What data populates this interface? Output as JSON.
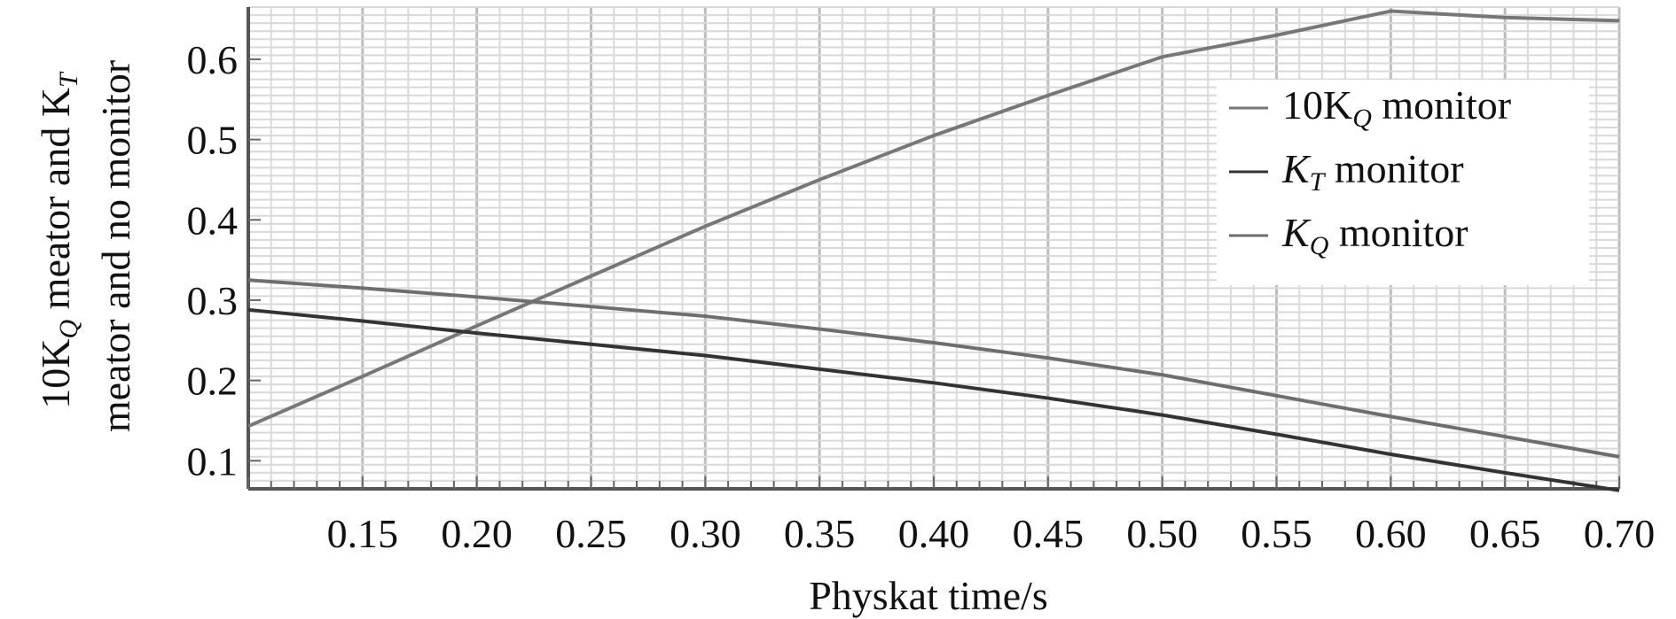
{
  "chart_data": {
    "type": "line",
    "xlabel": "Physkat time/s",
    "ylabel": {
      "line1_prefix": "10K",
      "line1_sub": "Q",
      "line1_mid": " meator and K",
      "line1_sub2": "T",
      "line2": "meator and no monitor"
    },
    "xlim": [
      0.1,
      0.7
    ],
    "ylim": [
      0.065,
      0.665
    ],
    "x_ticks": [
      "0.15",
      "0.20",
      "0.25",
      "0.30",
      "0.35",
      "0.40",
      "0.45",
      "0.50",
      "0.55",
      "0.60",
      "0.65",
      "0.70"
    ],
    "x_tick_values": [
      0.15,
      0.2,
      0.25,
      0.3,
      0.35,
      0.4,
      0.45,
      0.5,
      0.55,
      0.6,
      0.65,
      0.7
    ],
    "y_ticks": [
      "0.1",
      "0.2",
      "0.3",
      "0.4",
      "0.5",
      "0.6"
    ],
    "y_tick_values": [
      0.1,
      0.2,
      0.3,
      0.4,
      0.5,
      0.6
    ],
    "grid": true,
    "legend_position": "top-right",
    "series": [
      {
        "legend_main": "10K",
        "legend_sub": "Q",
        "legend_rest": " monitor",
        "color": "#777777",
        "x": [
          0.1,
          0.15,
          0.2,
          0.25,
          0.3,
          0.35,
          0.4,
          0.45,
          0.5,
          0.55,
          0.6,
          0.65,
          0.7
        ],
        "y": [
          0.143,
          0.205,
          0.268,
          0.33,
          0.392,
          0.45,
          0.505,
          0.555,
          0.603,
          0.63,
          0.66,
          0.652,
          0.648
        ]
      },
      {
        "legend_main": "K",
        "legend_sub": "T",
        "legend_rest": " monitor",
        "color": "#333333",
        "x": [
          0.1,
          0.15,
          0.2,
          0.25,
          0.3,
          0.35,
          0.4,
          0.45,
          0.5,
          0.55,
          0.6,
          0.65,
          0.7
        ],
        "y": [
          0.288,
          0.274,
          0.259,
          0.245,
          0.231,
          0.214,
          0.197,
          0.178,
          0.157,
          0.133,
          0.108,
          0.085,
          0.063
        ]
      },
      {
        "legend_main": "K",
        "legend_sub": "Q",
        "legend_rest": " monitor",
        "color": "#6e6e6e",
        "x": [
          0.1,
          0.15,
          0.2,
          0.25,
          0.3,
          0.35,
          0.4,
          0.45,
          0.5,
          0.55,
          0.6,
          0.65,
          0.7
        ],
        "y": [
          0.325,
          0.315,
          0.304,
          0.292,
          0.28,
          0.264,
          0.247,
          0.228,
          0.207,
          0.181,
          0.155,
          0.13,
          0.105
        ]
      }
    ]
  }
}
